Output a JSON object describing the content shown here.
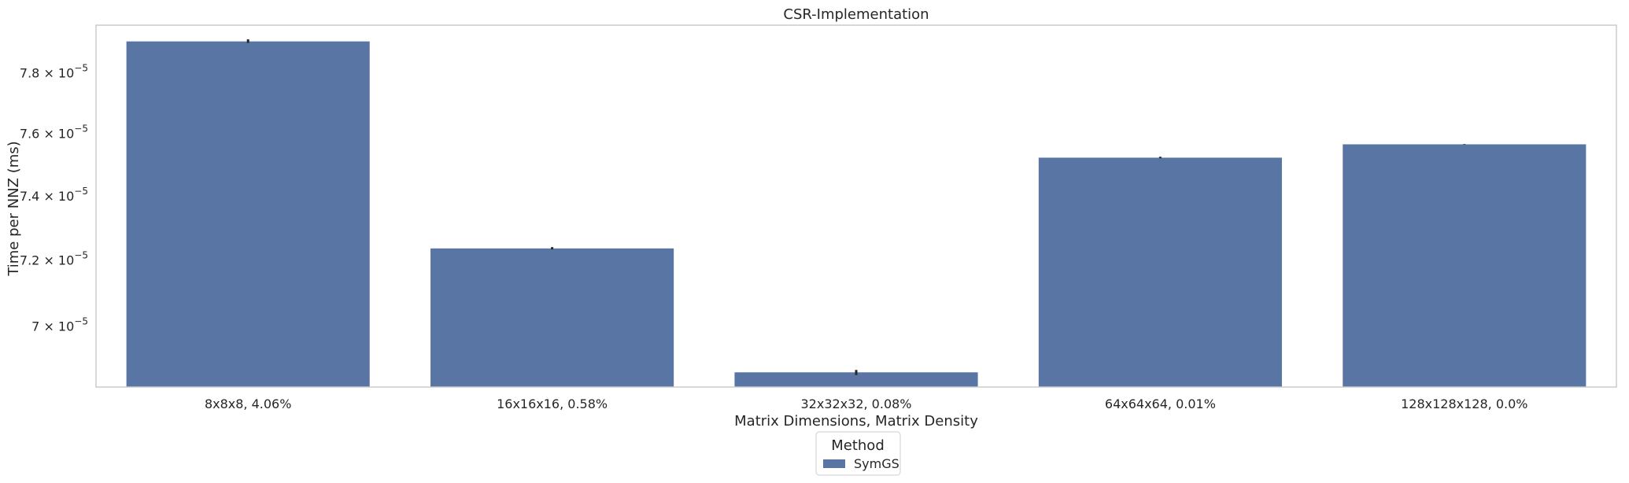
{
  "chart_data": {
    "type": "bar",
    "title": "CSR-Implementation",
    "xlabel": "Matrix Dimensions, Matrix Density",
    "ylabel": "Time per NNZ (ms)",
    "yscale": "log",
    "categories": [
      "8x8x8, 4.06%",
      "16x16x16, 0.58%",
      "32x32x32, 0.08%",
      "64x64x64, 0.01%",
      "128x128x128, 0.0%"
    ],
    "series": [
      {
        "name": "SymGS",
        "values": [
          7.905e-05,
          7.236e-05,
          6.863e-05,
          7.522e-05,
          7.565e-05
        ],
        "err_low": [
          7.9e-05,
          7.233e-05,
          6.855e-05,
          7.52e-05,
          7.565e-05
        ],
        "err_high": [
          7.912e-05,
          7.24e-05,
          6.87e-05,
          7.525e-05,
          7.565e-05
        ],
        "color": "#5975a4"
      }
    ],
    "ylim": [
      6.82e-05,
      7.96e-05
    ],
    "yticks": [
      {
        "value": 7e-05,
        "mantissa": "7",
        "exp": "−5"
      },
      {
        "value": 7.2e-05,
        "mantissa": "7.2",
        "exp": "−5"
      },
      {
        "value": 7.4e-05,
        "mantissa": "7.4",
        "exp": "−5"
      },
      {
        "value": 7.6e-05,
        "mantissa": "7.6",
        "exp": "−5"
      },
      {
        "value": 7.8e-05,
        "mantissa": "7.8",
        "exp": "−5"
      }
    ],
    "grid": false,
    "legend": {
      "title": "Method",
      "placement": "bottom-center"
    },
    "error_color": "#262626",
    "frame_color": "#cccccc"
  }
}
